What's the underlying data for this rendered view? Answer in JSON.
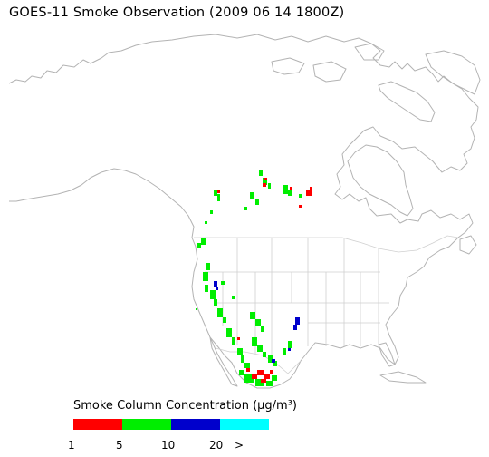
{
  "title": "GOES-11 Smoke Observation (2009 06 14  1800Z)",
  "legend": {
    "title": "Smoke Column Concentration (µg/m³)",
    "bins": [
      {
        "color": "#ff0000"
      },
      {
        "color": "#00ee00"
      },
      {
        "color": "#0000cc"
      },
      {
        "color": "#00ffff"
      }
    ],
    "ticks": [
      "1",
      "5",
      "10",
      "20",
      ">"
    ]
  },
  "colors": {
    "coastline": "#b3b3b3",
    "borders": "#d0d0d0",
    "smoke_low": "#ff0000",
    "smoke_mid": "#00ee00",
    "smoke_high": "#0000cc",
    "smoke_top": "#00ffff"
  }
}
